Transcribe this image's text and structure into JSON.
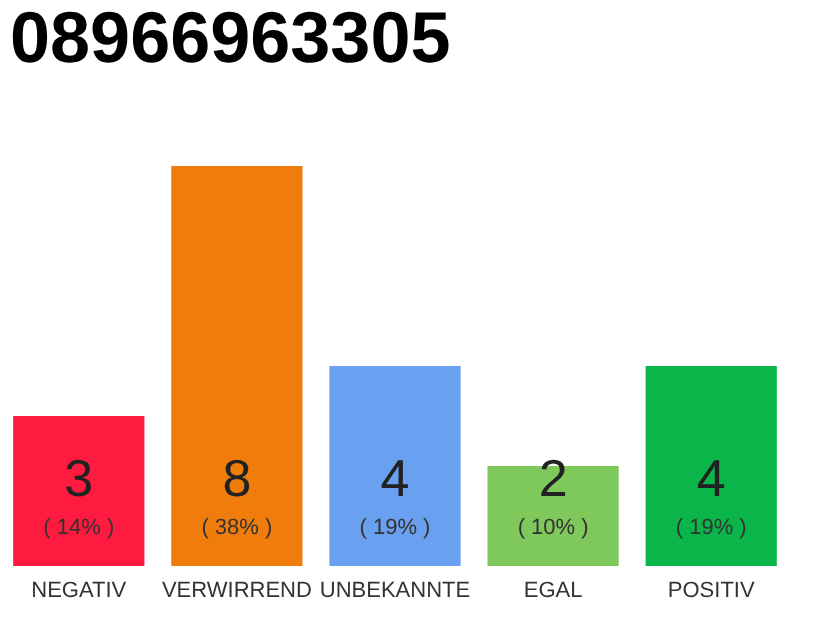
{
  "chart_data": {
    "type": "bar",
    "title": "08966963305",
    "categories": [
      "NEGATIV",
      "VERWIRREND",
      "UNBEKANNTE",
      "EGAL",
      "POSITIV"
    ],
    "values": [
      3,
      8,
      4,
      2,
      4
    ],
    "colors": [
      "#ff1a40",
      "#f07c0c",
      "#6aa0f0",
      "#7ec85c",
      "#0ab54a"
    ],
    "ylim": [
      0,
      8
    ],
    "tick_labels": "x",
    "data_labels": true,
    "annotations": [
      "( 14% )",
      "( 38% )",
      "( 19% )",
      "( 10% )",
      "( 19% )"
    ]
  }
}
